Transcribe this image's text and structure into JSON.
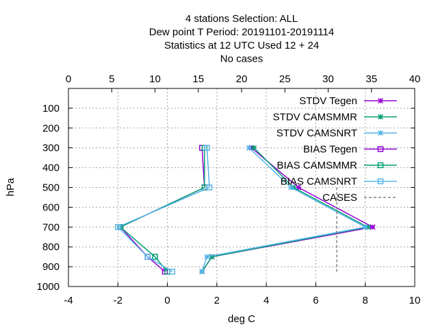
{
  "chart_data": {
    "type": "line",
    "title_lines": [
      "4 stations Selection: ALL",
      "Dew point T  Period: 20191101-20191114",
      "Statistics at 12 UTC  Used  12 + 24",
      "No cases"
    ],
    "xlabel": "deg C",
    "ylabel": "hPa",
    "xlim": [
      -4,
      10
    ],
    "x2lim": [
      0,
      40
    ],
    "ylim": [
      1000,
      0
    ],
    "xticks": [
      "-4",
      "-2",
      "0",
      "2",
      "4",
      "6",
      "8",
      "10"
    ],
    "x2ticks": [
      "0",
      "5",
      "10",
      "15",
      "20",
      "25",
      "30",
      "35",
      "40"
    ],
    "yticks": [
      "100",
      "200",
      "300",
      "400",
      "500",
      "600",
      "700",
      "800",
      "900",
      "1000"
    ],
    "grid": true,
    "legend_position": "top-right",
    "levels": [
      300,
      500,
      700,
      850,
      925
    ],
    "series": [
      {
        "name": "STDV Tegen",
        "color": "#9400d3",
        "marker": "x-star",
        "values": [
          3.4,
          5.3,
          8.3,
          1.8,
          1.4
        ]
      },
      {
        "name": "STDV CAMSMMR",
        "color": "#009e73",
        "marker": "x-star",
        "values": [
          3.5,
          5.1,
          8.1,
          1.8,
          1.4
        ]
      },
      {
        "name": "STDV CAMSNRT",
        "color": "#56b4e9",
        "marker": "x-star",
        "values": [
          3.3,
          5.0,
          8.0,
          1.6,
          1.4
        ]
      },
      {
        "name": "BIAS Tegen",
        "color": "#9400d3",
        "marker": "square",
        "values": [
          1.4,
          1.5,
          -1.9,
          -0.8,
          -0.1
        ]
      },
      {
        "name": "BIAS CAMSMMR",
        "color": "#009e73",
        "marker": "square",
        "values": [
          1.5,
          1.5,
          -1.9,
          -0.5,
          0.0
        ]
      },
      {
        "name": "BIAS CAMSNRT",
        "color": "#56b4e9",
        "marker": "square",
        "values": [
          1.6,
          1.7,
          -2.0,
          -0.8,
          0.2
        ]
      },
      {
        "name": "CASES",
        "color": "#808080",
        "marker": "none",
        "dashed": true,
        "cases_x": 31,
        "y_range": [
          500,
          925
        ]
      }
    ]
  }
}
